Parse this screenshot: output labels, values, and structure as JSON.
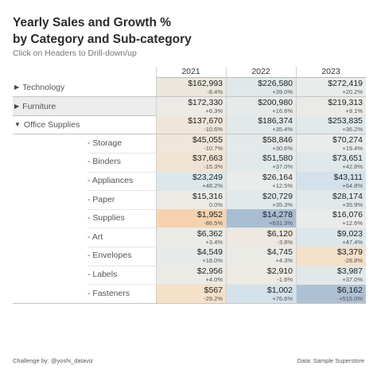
{
  "title_line1": "Yearly Sales and Growth %",
  "title_line2": "by Category and Sub-category",
  "subtitle": "Click on Headers to Drill-down/up",
  "years": [
    "2021",
    "2022",
    "2023"
  ],
  "rows": [
    {
      "type": "cat",
      "label": "Technology",
      "caret": "▶",
      "expanded": false,
      "cells": [
        {
          "value": "$162,993",
          "growth": "-8.4%",
          "color": "#ece7dd"
        },
        {
          "value": "$226,580",
          "growth": "+39.0%",
          "color": "#e1e8ea"
        },
        {
          "value": "$272,419",
          "growth": "+20.2%",
          "color": "#e8ecea"
        }
      ]
    },
    {
      "type": "cat",
      "label": "Furniture",
      "caret": "▶",
      "expanded": false,
      "cells": [
        {
          "value": "$172,330",
          "growth": "+6.3%",
          "color": "#eceae4"
        },
        {
          "value": "$200,980",
          "growth": "+16.6%",
          "color": "#e6eae8"
        },
        {
          "value": "$219,313",
          "growth": "+9.1%",
          "color": "#eaebe6"
        }
      ]
    },
    {
      "type": "cat",
      "label": "Office Supplies",
      "caret": "▼",
      "expanded": true,
      "cells": [
        {
          "value": "$137,670",
          "growth": "-10.6%",
          "color": "#efe6db"
        },
        {
          "value": "$186,374",
          "growth": "+35.4%",
          "color": "#e2e9ea"
        },
        {
          "value": "$253,835",
          "growth": "+36.2%",
          "color": "#e2e9ea"
        }
      ]
    },
    {
      "type": "sub",
      "label": "- Storage",
      "cells": [
        {
          "value": "$45,055",
          "growth": "-10.7%",
          "color": "#f0e6d9"
        },
        {
          "value": "$58,846",
          "growth": "+30.6%",
          "color": "#e4eaea"
        },
        {
          "value": "$70,274",
          "growth": "+19.4%",
          "color": "#e8ecea"
        }
      ]
    },
    {
      "type": "sub",
      "label": "- Binders",
      "cells": [
        {
          "value": "$37,663",
          "growth": "-15.3%",
          "color": "#f1e3d2"
        },
        {
          "value": "$51,580",
          "growth": "+37.0%",
          "color": "#e2e9ea"
        },
        {
          "value": "$73,651",
          "growth": "+42.8%",
          "color": "#dfe8ea"
        }
      ]
    },
    {
      "type": "sub",
      "label": "- Appliances",
      "cells": [
        {
          "value": "$23,249",
          "growth": "+48.2%",
          "color": "#dce7ec"
        },
        {
          "value": "$26,164",
          "growth": "+12.5%",
          "color": "#e9ecea"
        },
        {
          "value": "$43,111",
          "growth": "+64.8%",
          "color": "#d3e2ea"
        }
      ]
    },
    {
      "type": "sub",
      "label": "- Paper",
      "cells": [
        {
          "value": "$15,316",
          "growth": "0.0%",
          "color": "#ecebe6"
        },
        {
          "value": "$20,729",
          "growth": "+35.3%",
          "color": "#e2e9ea"
        },
        {
          "value": "$28,174",
          "growth": "+35.9%",
          "color": "#e2e9ea"
        }
      ]
    },
    {
      "type": "sub",
      "label": "- Supplies",
      "cells": [
        {
          "value": "$1,952",
          "growth": "-86.5%",
          "color": "#f6d3ae"
        },
        {
          "value": "$14,278",
          "growth": "+631.3%",
          "color": "#a9bdd2"
        },
        {
          "value": "$16,076",
          "growth": "+12.6%",
          "color": "#e9ecea"
        }
      ]
    },
    {
      "type": "sub",
      "label": "- Art",
      "cells": [
        {
          "value": "$6,362",
          "growth": "+3.4%",
          "color": "#ebebe6"
        },
        {
          "value": "$6,120",
          "growth": "-3.8%",
          "color": "#eee8e0"
        },
        {
          "value": "$9,023",
          "growth": "+47.4%",
          "color": "#dde7ea"
        }
      ]
    },
    {
      "type": "sub",
      "label": "- Envelopes",
      "cells": [
        {
          "value": "$4,549",
          "growth": "+18.0%",
          "color": "#e6eae9"
        },
        {
          "value": "$4,745",
          "growth": "+4.3%",
          "color": "#ebebe6"
        },
        {
          "value": "$3,379",
          "growth": "-28.8%",
          "color": "#f5e0c8"
        }
      ]
    },
    {
      "type": "sub",
      "label": "- Labels",
      "cells": [
        {
          "value": "$2,956",
          "growth": "+4.0%",
          "color": "#ebebe6"
        },
        {
          "value": "$2,910",
          "growth": "-1.6%",
          "color": "#edeae4"
        },
        {
          "value": "$3,987",
          "growth": "+37.0%",
          "color": "#e1e8ea"
        }
      ]
    },
    {
      "type": "sub",
      "label": "- Fasteners",
      "cells": [
        {
          "value": "$567",
          "growth": "-29.2%",
          "color": "#f5e0c8"
        },
        {
          "value": "$1,002",
          "growth": "+76.6%",
          "color": "#d4e2ea"
        },
        {
          "value": "$6,162",
          "growth": "+515.0%",
          "color": "#aec1d4"
        }
      ]
    }
  ],
  "footer_left": "Challenge by: @yoshi_dataviz",
  "footer_right": "Data: Sample Superstore"
}
